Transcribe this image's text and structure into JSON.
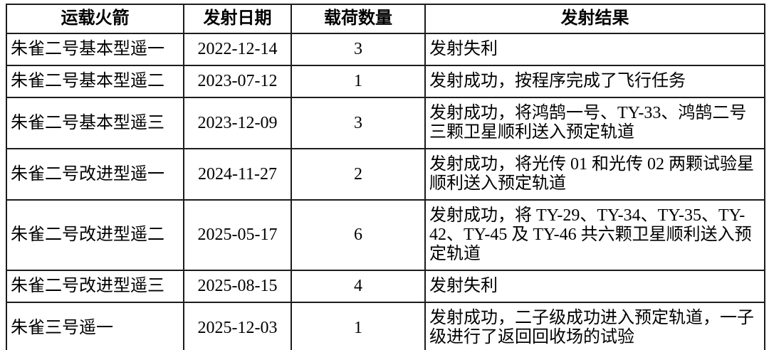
{
  "page": {
    "background_color": "#ffffff",
    "border_color": "#1c1c1c",
    "text_color": "#000000"
  },
  "table": {
    "headers": [
      "运载火箭",
      "发射日期",
      "载荷数量",
      "发射结果"
    ],
    "rows": [
      {
        "rocket": "朱雀二号基本型遥一",
        "date": "2022-12-14",
        "payload_count": "3",
        "result": "发射失利"
      },
      {
        "rocket": "朱雀二号基本型遥二",
        "date": "2023-07-12",
        "payload_count": "1",
        "result": "发射成功，按程序完成了飞行任务"
      },
      {
        "rocket": "朱雀二号基本型遥三",
        "date": "2023-12-09",
        "payload_count": "3",
        "result": "发射成功，将鸿鹄一号、TY-33、鸿鹄二号三颗卫星顺利送入预定轨道"
      },
      {
        "rocket": "朱雀二号改进型遥一",
        "date": "2024-11-27",
        "payload_count": "2",
        "result": "发射成功，将光传 01 和光传 02 两颗试验星顺利送入预定轨道"
      },
      {
        "rocket": "朱雀二号改进型遥二",
        "date": "2025-05-17",
        "payload_count": "6",
        "result": "发射成功，将 TY-29、TY-34、TY-35、TY-42、TY-45 及 TY-46 共六颗卫星顺利送入预定轨道"
      },
      {
        "rocket": "朱雀二号改进型遥三",
        "date": "2025-08-15",
        "payload_count": "4",
        "result": "发射失利"
      },
      {
        "rocket": "朱雀三号遥一",
        "date": "2025-12-03",
        "payload_count": "1",
        "result": "发射成功，二子级成功进入预定轨道，一子级进行了返回回收场的试验"
      }
    ]
  }
}
